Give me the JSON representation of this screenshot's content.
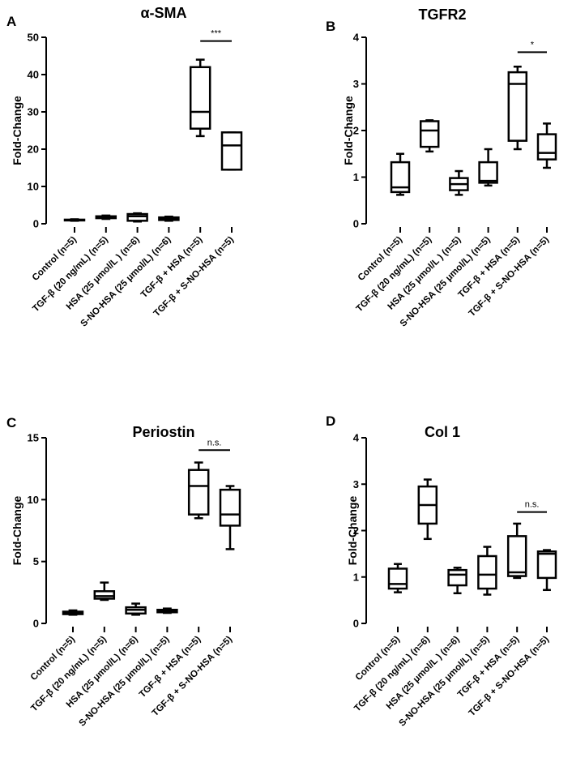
{
  "chart_data": [
    {
      "type": "box",
      "panel_letter": "A",
      "title": "α-SMA",
      "ylabel": "Fold-Change",
      "ylim": [
        0,
        50
      ],
      "yticks": [
        "0",
        "10",
        "20",
        "30",
        "40",
        "50"
      ],
      "categories": [
        "Control  (n=5)",
        "TGF-β (20 ng/mL) (n=5)",
        "HSA (25 μmol/L ) (n=6)",
        "S-NO-HSA (25 μmol/L) (n=6)",
        "TGF-β + HSA (n=5)",
        "TGF-β + S-NO-HSA  (n=5)"
      ],
      "boxes": [
        {
          "min": 0.8,
          "q1": 0.9,
          "median": 1.0,
          "q3": 1.1,
          "max": 1.2
        },
        {
          "min": 1.3,
          "q1": 1.5,
          "median": 1.8,
          "q3": 2.0,
          "max": 2.2
        },
        {
          "min": 0.6,
          "q1": 0.8,
          "median": 2.0,
          "q3": 2.6,
          "max": 2.8
        },
        {
          "min": 0.8,
          "q1": 1.0,
          "median": 1.4,
          "q3": 1.7,
          "max": 1.9
        },
        {
          "min": 23.5,
          "q1": 25.5,
          "median": 30.0,
          "q3": 42.0,
          "max": 44.0
        },
        {
          "min": 14.5,
          "q1": 14.5,
          "median": 21.0,
          "q3": 24.5,
          "max": 24.5
        }
      ],
      "significance": {
        "label": "***",
        "between": [
          4,
          5
        ],
        "y": 49
      }
    },
    {
      "type": "box",
      "panel_letter": "B",
      "title": "TGFR2",
      "ylabel": "Fold-Change",
      "ylim": [
        0,
        4
      ],
      "yticks": [
        "0",
        "1",
        "2",
        "3",
        "4"
      ],
      "categories": [
        "Control (n=5)",
        "TGF-β (20 ng/mL) (n=5)",
        "HSA (25 μmol/L ) (n=5)",
        "S-NO-HSA (25 μmol/L) (n=5)",
        "TGF-β + HSA (n=5)",
        "TGF-β + S-NO-HSA (n=5)"
      ],
      "boxes": [
        {
          "min": 0.62,
          "q1": 0.68,
          "median": 0.78,
          "q3": 1.32,
          "max": 1.5
        },
        {
          "min": 1.55,
          "q1": 1.65,
          "median": 2.0,
          "q3": 2.2,
          "max": 2.22
        },
        {
          "min": 0.62,
          "q1": 0.72,
          "median": 0.85,
          "q3": 0.98,
          "max": 1.13
        },
        {
          "min": 0.82,
          "q1": 0.88,
          "median": 0.92,
          "q3": 1.32,
          "max": 1.6
        },
        {
          "min": 1.6,
          "q1": 1.78,
          "median": 3.0,
          "q3": 3.25,
          "max": 3.37
        },
        {
          "min": 1.2,
          "q1": 1.38,
          "median": 1.52,
          "q3": 1.92,
          "max": 2.15
        }
      ],
      "significance": {
        "label": "*",
        "between": [
          4,
          5
        ],
        "y": 3.68
      }
    },
    {
      "type": "box",
      "panel_letter": "C",
      "title": "Periostin",
      "ylabel": "Fold-Change",
      "ylim": [
        0,
        15
      ],
      "yticks": [
        "0",
        "5",
        "10",
        "15"
      ],
      "categories": [
        "Control (n=5)",
        "TGF-β (20 ng/mL) (n=5)",
        "HSA (25 μmol/L) (n=6)",
        "S-NO-HSA (25 μmol/L) (n=5)",
        "TGF-β + HSA  (n=5)",
        "TGF-β + S-NO-HSA  (n=5)"
      ],
      "boxes": [
        {
          "min": 0.7,
          "q1": 0.75,
          "median": 0.85,
          "q3": 0.95,
          "max": 1.05
        },
        {
          "min": 1.9,
          "q1": 2.0,
          "median": 2.2,
          "q3": 2.6,
          "max": 3.3
        },
        {
          "min": 0.7,
          "q1": 0.8,
          "median": 1.1,
          "q3": 1.3,
          "max": 1.6
        },
        {
          "min": 0.85,
          "q1": 0.9,
          "median": 1.0,
          "q3": 1.1,
          "max": 1.2
        },
        {
          "min": 8.5,
          "q1": 8.8,
          "median": 11.1,
          "q3": 12.4,
          "max": 13.0
        },
        {
          "min": 6.0,
          "q1": 7.9,
          "median": 8.8,
          "q3": 10.8,
          "max": 11.1
        }
      ],
      "significance": {
        "label": "n.s.",
        "between": [
          4,
          5
        ],
        "y": 14.0
      }
    },
    {
      "type": "box",
      "panel_letter": "D",
      "title": "Col 1",
      "ylabel": "Fold-Change",
      "ylim": [
        0,
        4
      ],
      "yticks": [
        "0",
        "1",
        "2",
        "3",
        "4"
      ],
      "categories": [
        "Control (n=5)",
        "TGF-β (20 ng/mL)  (n=6)",
        "HSA (25 μmol/L ) (n=6)",
        "S-NO-HSA (25 μmol/L) (n=5)",
        "TGF-β + HSA  (n=5)",
        "TGF-β + S-NO-HSA (n=5)"
      ],
      "boxes": [
        {
          "min": 0.67,
          "q1": 0.75,
          "median": 0.85,
          "q3": 1.18,
          "max": 1.28
        },
        {
          "min": 1.82,
          "q1": 2.15,
          "median": 2.55,
          "q3": 2.95,
          "max": 3.1
        },
        {
          "min": 0.65,
          "q1": 0.82,
          "median": 1.05,
          "q3": 1.15,
          "max": 1.2
        },
        {
          "min": 0.62,
          "q1": 0.75,
          "median": 1.05,
          "q3": 1.45,
          "max": 1.65
        },
        {
          "min": 0.98,
          "q1": 1.02,
          "median": 1.1,
          "q3": 1.88,
          "max": 2.15
        },
        {
          "min": 0.72,
          "q1": 0.98,
          "median": 1.5,
          "q3": 1.55,
          "max": 1.58
        }
      ],
      "significance": {
        "label": "n.s.",
        "between": [
          4,
          5
        ],
        "y": 2.4
      }
    }
  ]
}
